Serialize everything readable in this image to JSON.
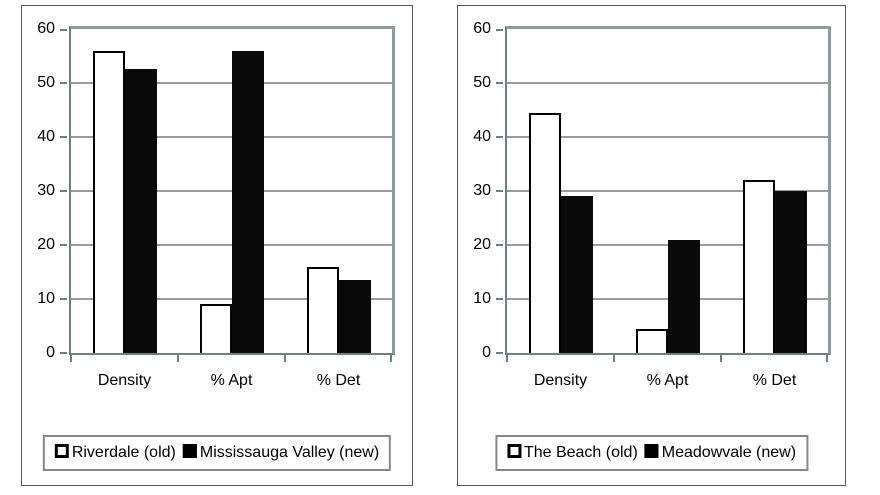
{
  "colors": {
    "bar_old_fill": "#ffffff",
    "bar_new_fill": "#0a0a0a",
    "bar_outline": "#000000",
    "gridline": "#9b9b9b",
    "plot_border": "#8e9c9d",
    "axis_line": "#6f7f7f",
    "panel_border": "#565656",
    "legend_border": "#878787",
    "text": "#000000"
  },
  "chart_data": [
    {
      "type": "bar",
      "title": "",
      "xlabel": "",
      "ylabel": "",
      "categories": [
        "Density",
        "% Apt",
        "% Det"
      ],
      "series": [
        {
          "name": "Riverdale (old)",
          "style": "white",
          "values": [
            56,
            9,
            16
          ]
        },
        {
          "name": "Mississauga Valley (new)",
          "style": "black",
          "values": [
            52.5,
            56,
            13.5
          ]
        }
      ],
      "ylim": [
        0,
        60
      ],
      "ytick_step": 10,
      "yticks": [
        0,
        10,
        20,
        30,
        40,
        50,
        60
      ],
      "grid": true,
      "legend_position": "bottom"
    },
    {
      "type": "bar",
      "title": "",
      "xlabel": "",
      "ylabel": "",
      "categories": [
        "Density",
        "% Apt",
        "% Det"
      ],
      "series": [
        {
          "name": "The Beach (old)",
          "style": "white",
          "values": [
            44.5,
            4.5,
            32
          ]
        },
        {
          "name": "Meadowvale (new)",
          "style": "black",
          "values": [
            29,
            21,
            30
          ]
        }
      ],
      "ylim": [
        0,
        60
      ],
      "ytick_step": 10,
      "yticks": [
        0,
        10,
        20,
        30,
        40,
        50,
        60
      ],
      "grid": true,
      "legend_position": "bottom"
    }
  ]
}
